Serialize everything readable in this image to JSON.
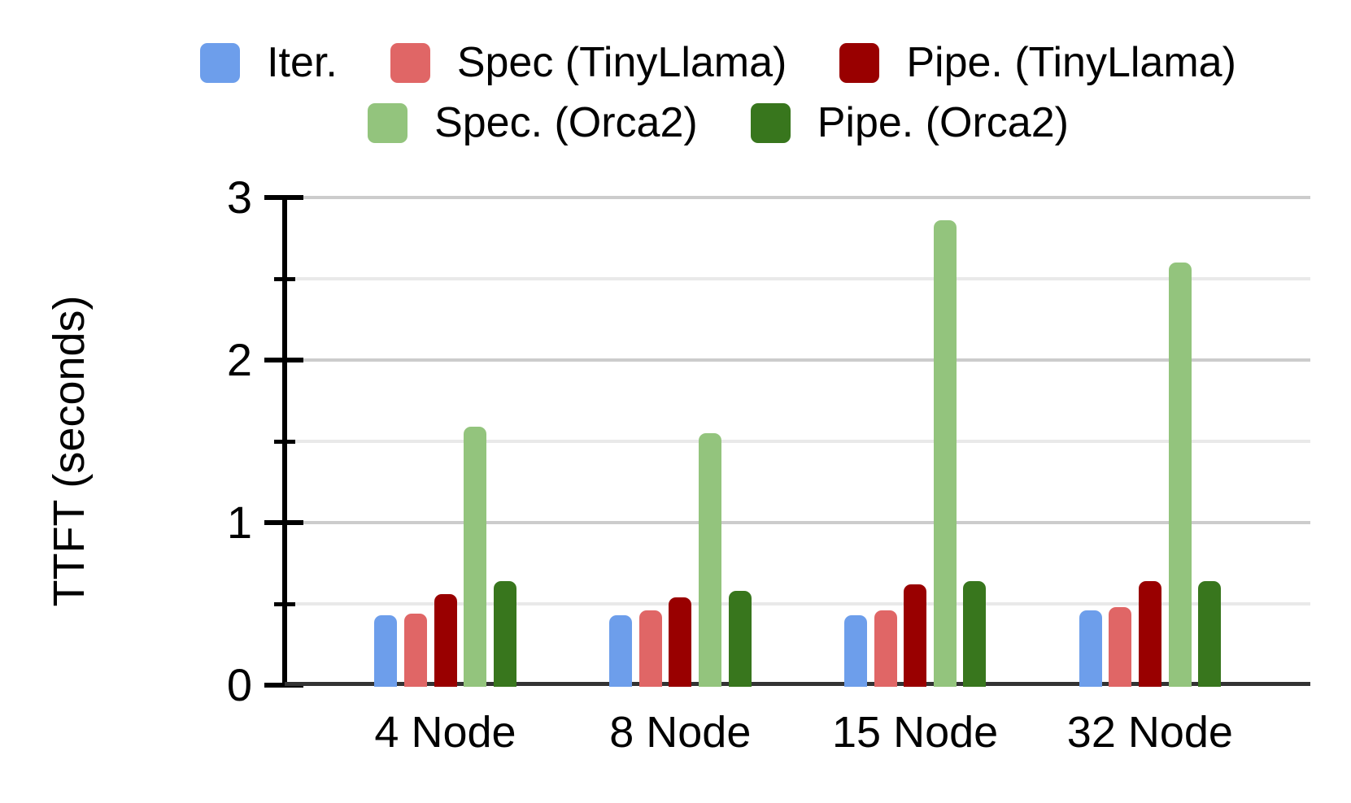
{
  "chart_data": {
    "type": "bar",
    "title": "",
    "xlabel": "",
    "ylabel": "TTFT (seconds)",
    "ylim": [
      0,
      3
    ],
    "yticks": [
      0,
      1,
      2,
      3
    ],
    "minor_ticks": [
      0.5,
      1.5,
      2.5
    ],
    "gridline_step": 0.5,
    "grid": true,
    "legend_position": "top",
    "categories": [
      "4 Node",
      "8 Node",
      "15 Node",
      "32 Node"
    ],
    "series": [
      {
        "name": "Iter.",
        "color": "#6d9eeb",
        "values": [
          0.43,
          0.43,
          0.43,
          0.46
        ]
      },
      {
        "name": "Spec (TinyLlama)",
        "color": "#e06666",
        "values": [
          0.44,
          0.46,
          0.46,
          0.48
        ]
      },
      {
        "name": "Pipe. (TinyLlama)",
        "color": "#990000",
        "values": [
          0.56,
          0.54,
          0.62,
          0.64
        ]
      },
      {
        "name": "Spec. (Orca2)",
        "color": "#93c47d",
        "values": [
          1.59,
          1.55,
          2.86,
          2.6
        ]
      },
      {
        "name": "Pipe. (Orca2)",
        "color": "#38761d",
        "values": [
          0.64,
          0.58,
          0.64,
          0.64
        ]
      }
    ],
    "legend_rows": [
      [
        "Iter.",
        "Spec (TinyLlama)",
        "Pipe. (TinyLlama)"
      ],
      [
        "Spec. (Orca2)",
        "Pipe. (Orca2)"
      ]
    ]
  },
  "colors": {
    "background": "#ffffff",
    "axis": "#000000",
    "baseline": "#333333",
    "gridline_major": "#cccccc",
    "gridline_minor": "#e9e9e9",
    "text": "#000000"
  }
}
